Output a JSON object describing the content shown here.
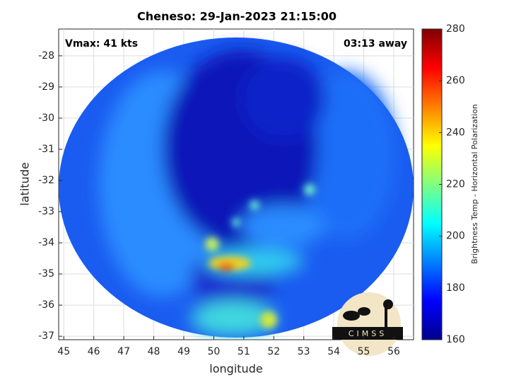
{
  "chart_data": {
    "type": "heatmap",
    "title": "Cheneso: 29-Jan-2023 21:15:00",
    "annotations": [
      "Vmax: 41 kts",
      "03:13 away"
    ],
    "xlabel": "longitude",
    "ylabel": "latitude",
    "xlim": [
      44.83,
      56.66
    ],
    "xticks": [
      45,
      46,
      47,
      48,
      49,
      50,
      51,
      52,
      53,
      54,
      55,
      56
    ],
    "ylim": [
      -37.11,
      -27.14
    ],
    "yticks": [
      -28,
      -29,
      -30,
      -31,
      -32,
      -33,
      -34,
      -35,
      -36,
      -37
    ],
    "grid": true,
    "colorbar": {
      "label": "Brightness Temp - Horizontal Polarization",
      "colormap": "jet",
      "lim": [
        160,
        280
      ],
      "ticks": [
        160,
        180,
        200,
        220,
        240,
        260,
        280
      ]
    },
    "logo": "CIMSS"
  }
}
